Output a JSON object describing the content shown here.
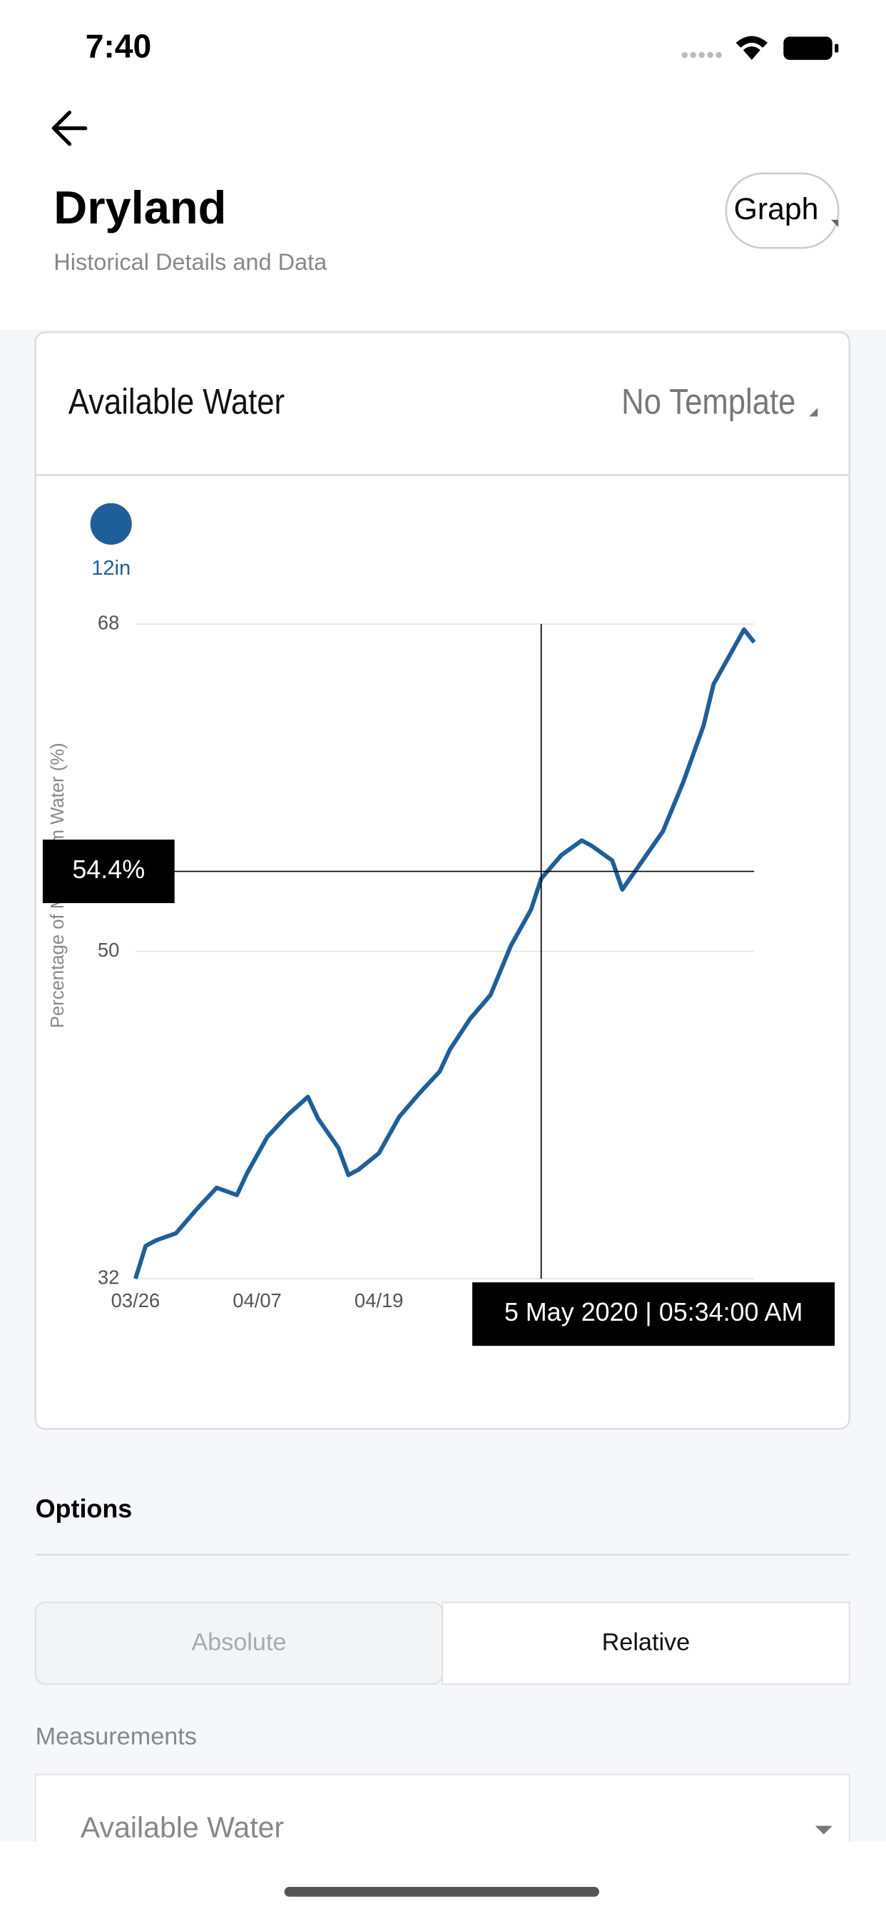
{
  "status_bar": {
    "time": "7:40"
  },
  "header": {
    "title": "Dryland",
    "subtitle": "Historical Details and Data",
    "view_button": "Graph"
  },
  "card": {
    "title": "Available Water",
    "template": "No Template"
  },
  "chart_data": {
    "type": "line",
    "y_label": "Percentage of Maximum Water (%)",
    "x": [
      "03/26",
      "03/27",
      "03/28",
      "03/30",
      "04/01",
      "04/03",
      "04/05",
      "04/06",
      "04/08",
      "04/10",
      "04/12",
      "04/13",
      "04/15",
      "04/16",
      "04/17",
      "04/19",
      "04/21",
      "04/23",
      "04/25",
      "04/26",
      "04/28",
      "04/30",
      "05/02",
      "05/04",
      "05/05",
      "05/07",
      "05/09",
      "05/10",
      "05/12",
      "05/13",
      "05/15",
      "05/17",
      "05/19",
      "05/21",
      "05/22",
      "05/24",
      "05/25",
      "05/26"
    ],
    "series": [
      {
        "name": "12in",
        "color": "#1f5f99",
        "values": [
          32,
          33.8,
          34.1,
          34.5,
          35.8,
          37,
          36.6,
          37.8,
          39.8,
          41,
          42,
          40.8,
          39.2,
          37.7,
          38,
          38.9,
          40.9,
          42.2,
          43.4,
          44.6,
          46.3,
          47.6,
          50.3,
          52.3,
          54,
          55.3,
          56.1,
          55.8,
          55,
          53.4,
          55,
          56.6,
          59.3,
          62.4,
          64.7,
          66.7,
          67.7,
          67
        ]
      }
    ],
    "xlim": [
      "03/26",
      "05/26"
    ],
    "xticks": [
      "03/26",
      "04/07",
      "04/19"
    ],
    "ylim": [
      32,
      68
    ],
    "yticks": [
      32,
      50,
      68
    ],
    "grid": true,
    "crosshair": {
      "x": "05/05",
      "y": 54.4,
      "y_label": "54.4%",
      "x_label": "5 May 2020 | 05:34:00 AM"
    }
  },
  "options": {
    "title": "Options",
    "modes": [
      "Absolute",
      "Relative"
    ],
    "selected_mode": "Relative",
    "measurements_label": "Measurements",
    "measurement": "Available Water"
  }
}
